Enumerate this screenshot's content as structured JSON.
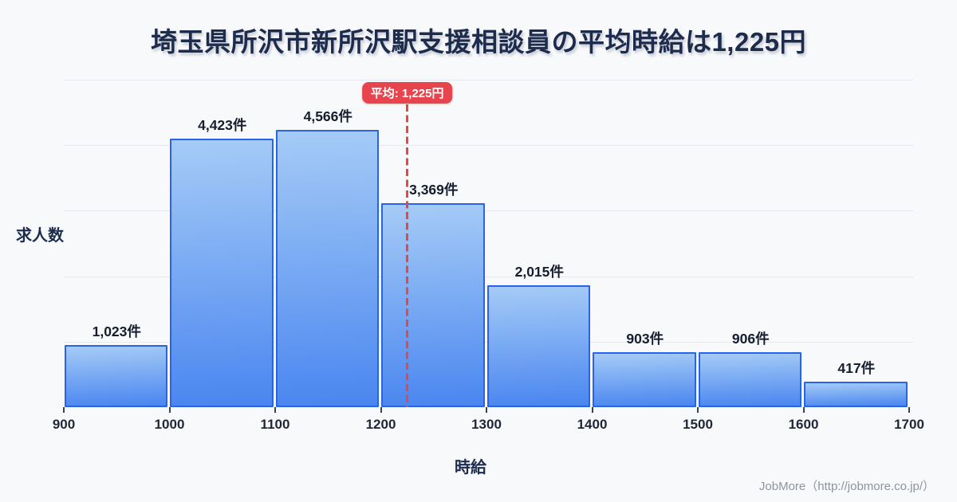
{
  "title": "埼玉県所沢市新所沢駅支援相談員の平均時給は1,225円",
  "chart_data": {
    "type": "bar",
    "title": "埼玉県所沢市新所沢駅支援相談員の平均時給は1,225円",
    "xlabel": "時給",
    "ylabel": "求人数",
    "bin_edges": [
      900,
      1000,
      1100,
      1200,
      1300,
      1400,
      1500,
      1600,
      1700
    ],
    "categories": [
      "900-1000",
      "1000-1100",
      "1100-1200",
      "1200-1300",
      "1300-1400",
      "1400-1500",
      "1500-1600",
      "1600-1700"
    ],
    "values": [
      1023,
      4423,
      4566,
      3369,
      2015,
      903,
      906,
      417
    ],
    "value_labels": [
      "1,023件",
      "4,423件",
      "4,566件",
      "3,369件",
      "2,015件",
      "903件",
      "906件",
      "417件"
    ],
    "x_tick_labels": [
      "900",
      "1000",
      "1100",
      "1200",
      "1300",
      "1400",
      "1500",
      "1600",
      "1700"
    ],
    "average": {
      "value": 1225,
      "label": "平均: 1,225円"
    },
    "xlim": [
      900,
      1700
    ],
    "ylim": [
      0,
      5400
    ],
    "grid": true,
    "legend": false,
    "unit": "件"
  },
  "colors": {
    "background": "#f7f9fb",
    "title_text": "#1d2b4c",
    "bar_fill_top": "#a5cbf6",
    "bar_fill_bottom": "#4a86f0",
    "bar_border": "#2a62e8",
    "gridline": "#e3e8f1",
    "axis_text": "#1f2736",
    "average_badge_red": "#e8444e",
    "average_line_red": "#e54742",
    "footer_text": "#8e939e"
  },
  "footer": {
    "credit": "JobMore（http://jobmore.co.jp/）"
  }
}
